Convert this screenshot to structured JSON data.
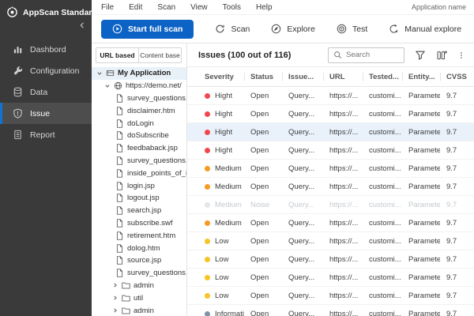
{
  "app": {
    "title": "AppScan Standard",
    "application_name_label": "Application name"
  },
  "colors": {
    "accent": "#0d63c5",
    "selected_row": "#e9f2fb",
    "sidebar_active_bar": "#1273d2"
  },
  "menubar": {
    "items": [
      "File",
      "Edit",
      "Scan",
      "View",
      "Tools",
      "Help"
    ]
  },
  "toolbar": {
    "start_button": {
      "label": "Start full scan",
      "icon": "play-circle"
    },
    "actions": [
      {
        "label": "Scan",
        "icon": "refresh"
      },
      {
        "label": "Explore",
        "icon": "compass"
      },
      {
        "label": "Test",
        "icon": "target"
      },
      {
        "label": "Manual explore",
        "icon": "manual-pointer"
      }
    ]
  },
  "sidebar": {
    "items": [
      {
        "label": "Dashbord",
        "icon": "bar-chart",
        "active": false
      },
      {
        "label": "Configuration",
        "icon": "wrench",
        "active": false
      },
      {
        "label": "Data",
        "icon": "database",
        "active": false
      },
      {
        "label": "Issue",
        "icon": "shield-alert",
        "active": true
      },
      {
        "label": "Report",
        "icon": "report",
        "active": false
      }
    ]
  },
  "explorer": {
    "tabs": [
      {
        "label": "URL based",
        "active": true
      },
      {
        "label": "Content base",
        "active": false
      }
    ],
    "tree": [
      {
        "label": "My Application",
        "type": "app",
        "expanded": true,
        "selected": true
      },
      {
        "label": "https://demo.net/",
        "type": "site",
        "expanded": true,
        "selected": false
      },
      {
        "label": "survey_questions.jsp",
        "type": "file"
      },
      {
        "label": "disclaimer.htm",
        "type": "file"
      },
      {
        "label": "doLogin",
        "type": "file"
      },
      {
        "label": "doSubscribe",
        "type": "file"
      },
      {
        "label": "feedbaback.jsp",
        "type": "file"
      },
      {
        "label": "survey_questions.jsp",
        "type": "file"
      },
      {
        "label": "inside_points_of_inter",
        "type": "file"
      },
      {
        "label": "login.jsp",
        "type": "file"
      },
      {
        "label": "logout.jsp",
        "type": "file"
      },
      {
        "label": "search.jsp",
        "type": "file"
      },
      {
        "label": "subscribe.swf",
        "type": "file"
      },
      {
        "label": "retirement.htm",
        "type": "file"
      },
      {
        "label": "dolog.htm",
        "type": "file"
      },
      {
        "label": "source.jsp",
        "type": "file"
      },
      {
        "label": "survey_questions.jsp",
        "type": "file"
      },
      {
        "label": "admin",
        "type": "folder"
      },
      {
        "label": "util",
        "type": "folder"
      },
      {
        "label": "admin",
        "type": "folder"
      }
    ]
  },
  "issues": {
    "title": "Issues (100 out of 116)",
    "search_placeholder": "Search",
    "columns": [
      "Severity",
      "Status",
      "Issue...",
      "URL",
      "Tested...",
      "Entity...",
      "CVSS"
    ],
    "severity_colors": {
      "high": "#f2464d",
      "medium": "#f59b22",
      "low": "#f7c325",
      "info": "#7f93a7",
      "noise": "#e3e7ea"
    },
    "rows": [
      {
        "severity": "Hight",
        "level": "high",
        "status": "Open",
        "issue": "Query...",
        "url": "https://...",
        "tested": "customi...",
        "entity": "Parameter",
        "cvss": "9.7",
        "state": "normal"
      },
      {
        "severity": "Hight",
        "level": "high",
        "status": "Open",
        "issue": "Query...",
        "url": "https://...",
        "tested": "customi...",
        "entity": "Parameter",
        "cvss": "9.7",
        "state": "normal"
      },
      {
        "severity": "Hight",
        "level": "high",
        "status": "Open",
        "issue": "Query...",
        "url": "https://...",
        "tested": "customi...",
        "entity": "Parameter",
        "cvss": "9.7",
        "state": "selected"
      },
      {
        "severity": "Hight",
        "level": "high",
        "status": "Open",
        "issue": "Query...",
        "url": "https://...",
        "tested": "customi...",
        "entity": "Parameter",
        "cvss": "9.7",
        "state": "normal"
      },
      {
        "severity": "Medium",
        "level": "medium",
        "status": "Open",
        "issue": "Query...",
        "url": "https://...",
        "tested": "customi...",
        "entity": "Parameter",
        "cvss": "9.7",
        "state": "normal"
      },
      {
        "severity": "Medium",
        "level": "medium",
        "status": "Open",
        "issue": "Query...",
        "url": "https://...",
        "tested": "customi...",
        "entity": "Parameter",
        "cvss": "9.7",
        "state": "normal"
      },
      {
        "severity": "Medium",
        "level": "medium",
        "status": "Noise",
        "issue": "Query...",
        "url": "https://...",
        "tested": "customi...",
        "entity": "Parameter",
        "cvss": "9.7",
        "state": "noise"
      },
      {
        "severity": "Medium",
        "level": "medium",
        "status": "Open",
        "issue": "Query...",
        "url": "https://...",
        "tested": "customi...",
        "entity": "Parameter",
        "cvss": "9.7",
        "state": "normal"
      },
      {
        "severity": "Low",
        "level": "low",
        "status": "Open",
        "issue": "Query...",
        "url": "https://...",
        "tested": "customi...",
        "entity": "Parameter",
        "cvss": "9.7",
        "state": "normal"
      },
      {
        "severity": "Low",
        "level": "low",
        "status": "Open",
        "issue": "Query...",
        "url": "https://...",
        "tested": "customi...",
        "entity": "Parameter",
        "cvss": "9.7",
        "state": "normal"
      },
      {
        "severity": "Low",
        "level": "low",
        "status": "Open",
        "issue": "Query...",
        "url": "https://...",
        "tested": "customi...",
        "entity": "Parameter",
        "cvss": "9.7",
        "state": "normal"
      },
      {
        "severity": "Low",
        "level": "low",
        "status": "Open",
        "issue": "Query...",
        "url": "https://...",
        "tested": "customi...",
        "entity": "Parameter",
        "cvss": "9.7",
        "state": "normal"
      },
      {
        "severity": "Informatic",
        "level": "info",
        "status": "Open",
        "issue": "Query...",
        "url": "https://...",
        "tested": "customi...",
        "entity": "Parameter",
        "cvss": "9.7",
        "state": "normal"
      }
    ]
  }
}
